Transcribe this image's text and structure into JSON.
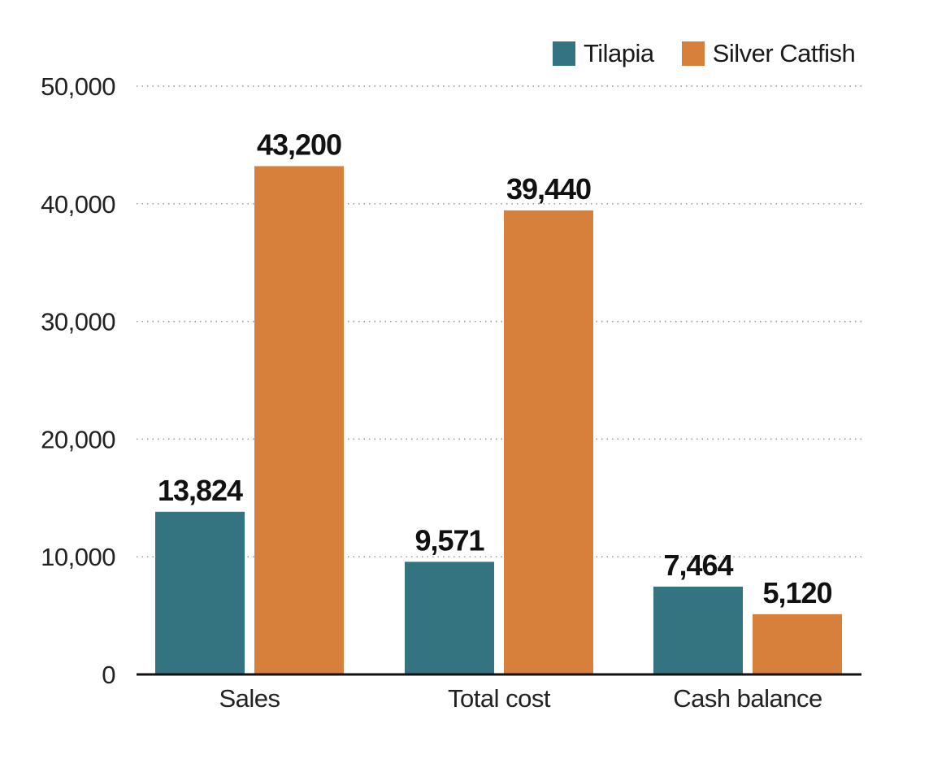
{
  "chart_data": {
    "type": "bar",
    "categories": [
      "Sales",
      "Total cost",
      "Cash balance"
    ],
    "series": [
      {
        "name": "Tilapia",
        "values": [
          13824,
          9571,
          7464
        ],
        "color": "#347380"
      },
      {
        "name": "Silver Catfish",
        "values": [
          43200,
          39440,
          5120
        ],
        "color": "#D7803B"
      }
    ],
    "value_labels": [
      [
        "13,824",
        "9,571",
        "7,464"
      ],
      [
        "43,200",
        "39,440",
        "5,120"
      ]
    ],
    "y_ticks": [
      0,
      10000,
      20000,
      30000,
      40000,
      50000
    ],
    "y_tick_labels": [
      "0",
      "10,000",
      "20,000",
      "30,000",
      "40,000",
      "50,000"
    ],
    "ylim": [
      0,
      50000
    ],
    "grid": "dotted horizontal",
    "legend_position": "top-right"
  }
}
